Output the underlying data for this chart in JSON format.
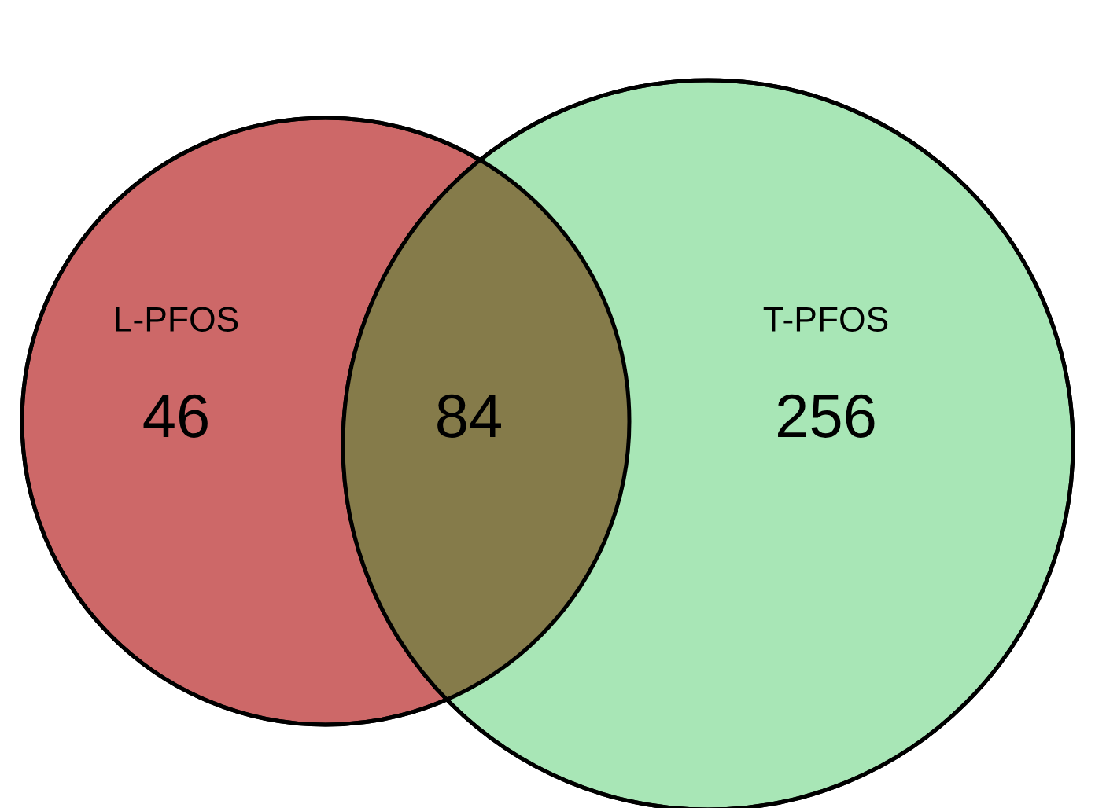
{
  "chart_data": {
    "type": "other",
    "categories": [
      "L-PFOS",
      null,
      "T-PFOS"
    ],
    "values": [
      46,
      84,
      256
    ],
    "data_labels": true,
    "colors": [
      "#cd6868",
      "#857b4a",
      "#a8e6b6"
    ]
  }
}
